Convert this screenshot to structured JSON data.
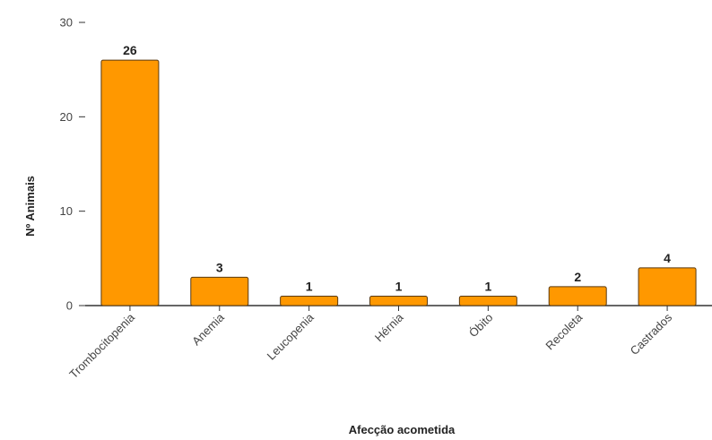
{
  "chart_data": {
    "type": "bar",
    "title": "",
    "xlabel": "Afecção acometida",
    "ylabel": "Nº Animais",
    "categories": [
      "Trombocitopenia",
      "Anemia",
      "Leucopenia",
      "Hérnia",
      "Óbito",
      "Recoleta",
      "Castrados"
    ],
    "values": [
      26,
      3,
      1,
      1,
      1,
      2,
      4
    ],
    "ylim": [
      0,
      30
    ],
    "yticks": [
      0,
      10,
      20,
      30
    ],
    "grid": false,
    "legend": "none",
    "bar_color": "#ff9800",
    "bar_stroke": "#5a3a10"
  }
}
